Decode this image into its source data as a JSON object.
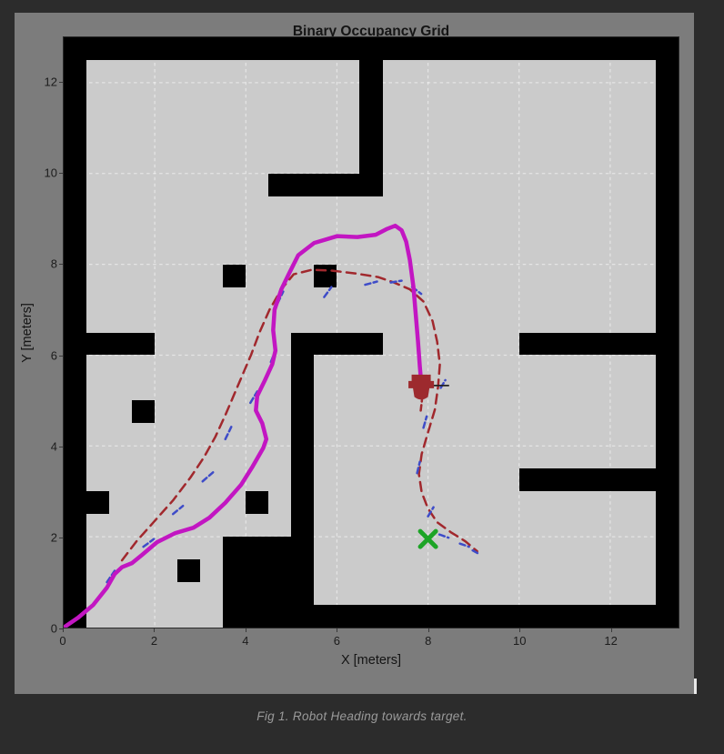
{
  "page": {
    "caption": "Fig 1. Robot Heading towards target."
  },
  "figure": {
    "title": "Binary Occupancy Grid",
    "xlabel": "X [meters]",
    "ylabel": "Y [meters]"
  },
  "colors": {
    "page_bg": "#2c2c2c",
    "figure_bg": "#7c7c7c",
    "free_space": "#cbcbcb",
    "occupied": "#000000",
    "grid_line": "rgba(255,255,255,0.5)",
    "robot_path": "#c216c2",
    "reference_path": "#a1282d",
    "particle_blue": "#3e4cc8",
    "goal_green": "#1da426",
    "robot_body": "#9d2a2e",
    "heading_line": "#222222",
    "axis_text": "#1c1c1c"
  },
  "chart_data": {
    "type": "line",
    "title": "Binary Occupancy Grid",
    "xlabel": "X [meters]",
    "ylabel": "Y [meters]",
    "xlim": [
      0,
      13.5
    ],
    "ylim": [
      0,
      13
    ],
    "xticks": [
      0,
      2,
      4,
      6,
      8,
      10,
      12
    ],
    "yticks": [
      0,
      2,
      4,
      6,
      8,
      10,
      12
    ],
    "grid": true,
    "map_size": [
      13.5,
      13
    ],
    "walls": [
      [
        0,
        12.5,
        13.5,
        13
      ],
      [
        3.5,
        0,
        13.5,
        0.5
      ],
      [
        0,
        0,
        0.5,
        12.5
      ],
      [
        13,
        0.5,
        13.5,
        12.5
      ],
      [
        6.5,
        9.5,
        7,
        12.5
      ],
      [
        4.5,
        9.5,
        7,
        10
      ],
      [
        0.5,
        6,
        2,
        6.5
      ],
      [
        5,
        6,
        7,
        6.5
      ],
      [
        5,
        2,
        5.5,
        6
      ],
      [
        3.5,
        0,
        5.5,
        2
      ],
      [
        10,
        6,
        13,
        6.5
      ],
      [
        10,
        3,
        13,
        3.5
      ],
      [
        3.5,
        7.5,
        4,
        8
      ],
      [
        5.5,
        7.5,
        6,
        8
      ],
      [
        1.5,
        4.5,
        2,
        5
      ],
      [
        0.5,
        2.5,
        1,
        3
      ],
      [
        4,
        2.5,
        4.5,
        3
      ],
      [
        2.5,
        1,
        3,
        1.5
      ]
    ],
    "series": [
      {
        "name": "robot-path",
        "style": "solid",
        "color": "#c216c2",
        "width": 0.09,
        "points": [
          [
            0,
            0
          ],
          [
            0.32,
            0.22
          ],
          [
            0.65,
            0.5
          ],
          [
            0.95,
            0.88
          ],
          [
            1.12,
            1.18
          ],
          [
            1.28,
            1.33
          ],
          [
            1.5,
            1.42
          ],
          [
            1.72,
            1.6
          ],
          [
            2.05,
            1.88
          ],
          [
            2.45,
            2.08
          ],
          [
            2.85,
            2.2
          ],
          [
            3.2,
            2.42
          ],
          [
            3.55,
            2.75
          ],
          [
            3.9,
            3.15
          ],
          [
            4.15,
            3.55
          ],
          [
            4.38,
            3.95
          ],
          [
            4.45,
            4.15
          ],
          [
            4.36,
            4.5
          ],
          [
            4.22,
            4.78
          ],
          [
            4.25,
            5.1
          ],
          [
            4.42,
            5.45
          ],
          [
            4.58,
            5.8
          ],
          [
            4.65,
            6.1
          ],
          [
            4.6,
            6.55
          ],
          [
            4.63,
            7.0
          ],
          [
            4.78,
            7.45
          ],
          [
            4.95,
            7.8
          ],
          [
            5.15,
            8.2
          ],
          [
            5.5,
            8.47
          ],
          [
            6.0,
            8.62
          ],
          [
            6.45,
            8.6
          ],
          [
            6.85,
            8.65
          ],
          [
            7.1,
            8.78
          ],
          [
            7.28,
            8.85
          ],
          [
            7.42,
            8.75
          ],
          [
            7.52,
            8.5
          ],
          [
            7.6,
            8.1
          ],
          [
            7.68,
            7.5
          ],
          [
            7.73,
            6.9
          ],
          [
            7.78,
            6.3
          ],
          [
            7.82,
            5.75
          ],
          [
            7.85,
            5.4
          ]
        ]
      },
      {
        "name": "reference-path",
        "style": "dashed",
        "color": "#a1282d",
        "width": 0.05,
        "points": [
          [
            1.28,
            1.48
          ],
          [
            1.6,
            1.9
          ],
          [
            2.0,
            2.35
          ],
          [
            2.4,
            2.8
          ],
          [
            2.78,
            3.3
          ],
          [
            3.08,
            3.75
          ],
          [
            3.33,
            4.2
          ],
          [
            3.55,
            4.68
          ],
          [
            3.75,
            5.15
          ],
          [
            3.95,
            5.62
          ],
          [
            4.12,
            6.02
          ],
          [
            4.3,
            6.5
          ],
          [
            4.52,
            7.0
          ],
          [
            4.78,
            7.45
          ],
          [
            5.05,
            7.78
          ],
          [
            5.45,
            7.88
          ],
          [
            5.9,
            7.86
          ],
          [
            6.4,
            7.8
          ],
          [
            6.9,
            7.72
          ],
          [
            7.25,
            7.6
          ],
          [
            7.6,
            7.45
          ],
          [
            7.9,
            7.18
          ],
          [
            8.1,
            6.75
          ],
          [
            8.2,
            6.3
          ],
          [
            8.26,
            5.8
          ],
          [
            8.22,
            5.3
          ],
          [
            8.15,
            4.8
          ],
          [
            8.0,
            4.3
          ],
          [
            7.86,
            3.82
          ],
          [
            7.8,
            3.38
          ],
          [
            7.86,
            2.98
          ],
          [
            8.0,
            2.62
          ],
          [
            8.2,
            2.32
          ],
          [
            8.5,
            2.1
          ],
          [
            8.82,
            1.9
          ],
          [
            9.08,
            1.68
          ]
        ]
      }
    ],
    "particles": {
      "color": "#3e4cc8",
      "width": 0.05,
      "segments": [
        [
          0.95,
          1.0,
          1.12,
          1.25
        ],
        [
          1.75,
          1.78,
          1.98,
          1.95
        ],
        [
          2.4,
          2.5,
          2.62,
          2.68
        ],
        [
          3.05,
          3.22,
          3.28,
          3.42
        ],
        [
          3.55,
          4.15,
          3.68,
          4.42
        ],
        [
          4.1,
          4.95,
          4.25,
          5.2
        ],
        [
          4.55,
          5.85,
          4.65,
          6.1
        ],
        [
          4.7,
          7.15,
          4.82,
          7.4
        ],
        [
          5.72,
          7.28,
          5.88,
          7.5
        ],
        [
          6.62,
          7.55,
          6.88,
          7.62
        ],
        [
          7.18,
          7.6,
          7.42,
          7.64
        ],
        [
          7.65,
          7.5,
          7.85,
          7.35
        ],
        [
          8.28,
          5.28,
          8.38,
          5.45
        ],
        [
          7.9,
          4.4,
          7.97,
          4.65
        ],
        [
          7.76,
          3.4,
          7.82,
          3.65
        ],
        [
          8.0,
          2.45,
          8.12,
          2.65
        ],
        [
          8.25,
          2.05,
          8.45,
          1.98
        ],
        [
          8.7,
          1.85,
          8.9,
          1.78
        ],
        [
          8.98,
          1.7,
          9.12,
          1.62
        ]
      ]
    },
    "red_ticks": [
      [
        7.84,
        4.78,
        7.87,
        5.04
      ]
    ],
    "goal": {
      "x": 8.0,
      "y": 1.95,
      "marker": "x",
      "size": 0.34,
      "color": "#1da426"
    },
    "robot": {
      "x": 7.85,
      "y": 5.3,
      "color": "#9d2a2e",
      "heading_line_to": [
        8.45,
        5.33
      ]
    }
  }
}
